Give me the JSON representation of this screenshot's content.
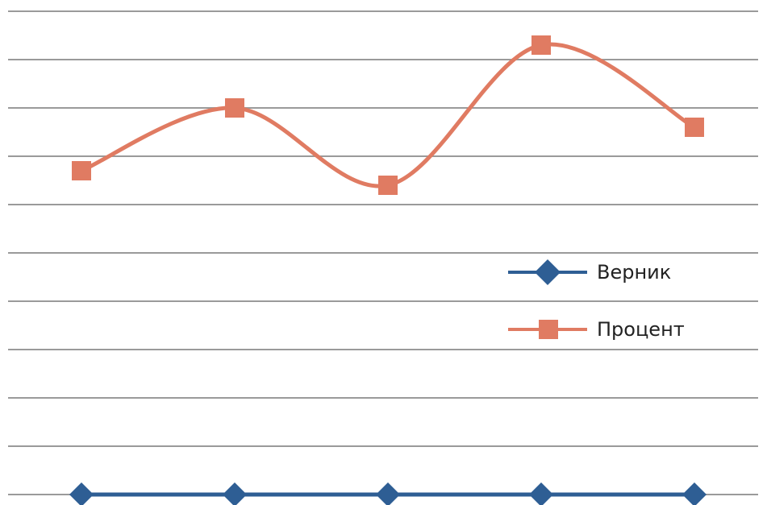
{
  "chart_data": {
    "type": "line",
    "smooth": true,
    "categories": [
      "",
      "",
      "",
      "",
      ""
    ],
    "ylim": [
      0,
      10
    ],
    "grid": true,
    "legend_position": "right",
    "series": [
      {
        "name": "Верник",
        "values": [
          0,
          0,
          0,
          0,
          0
        ],
        "color": "#2E5E94",
        "marker": "diamond"
      },
      {
        "name": "Процент",
        "values": [
          6.7,
          8.0,
          6.4,
          9.3,
          7.6
        ],
        "color": "#E07B62",
        "marker": "square"
      }
    ]
  }
}
